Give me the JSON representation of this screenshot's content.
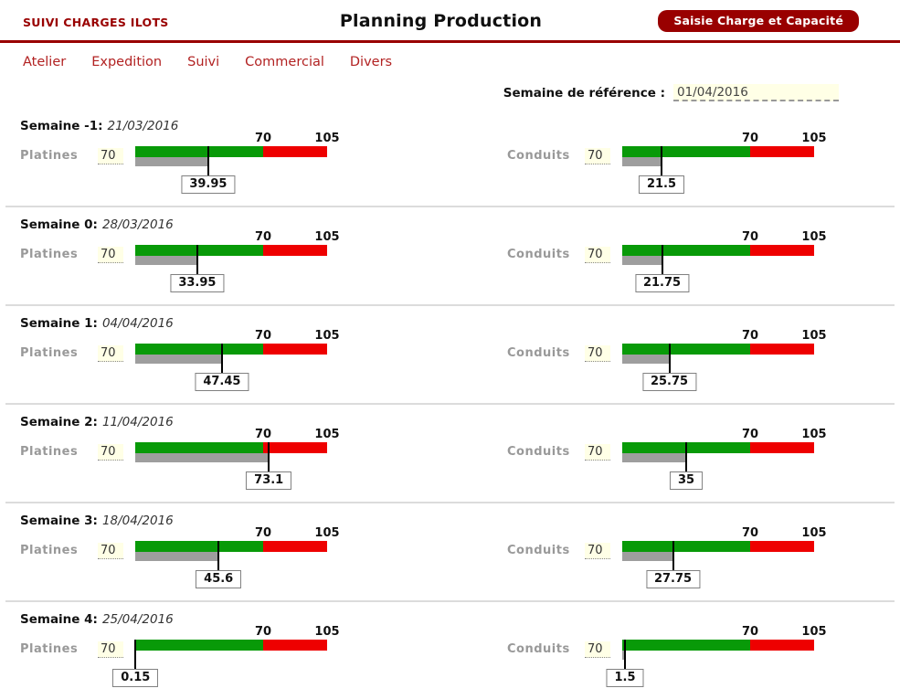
{
  "header": {
    "app_title": "SUIVI CHARGES ILOTS",
    "page_title": "Planning Production",
    "action_button_label": "Saisie Charge et Capacité"
  },
  "nav": {
    "items": [
      {
        "label": "Atelier"
      },
      {
        "label": "Expedition"
      },
      {
        "label": "Suivi"
      },
      {
        "label": "Commercial"
      },
      {
        "label": "Divers"
      }
    ]
  },
  "reference": {
    "label": "Semaine de référence :",
    "value": "01/04/2016"
  },
  "scale": {
    "warn_label": "70",
    "max_label": "105",
    "warn_value": 70,
    "max_value": 105
  },
  "colors": {
    "accent_red": "#990000",
    "nav_red": "#b22222",
    "capacity_green": "#089a08",
    "overload_red": "#ee0000",
    "charge_gray": "#9e9e9e",
    "input_yellow": "#ffffe6"
  },
  "weeks": [
    {
      "label": "Semaine -1:",
      "date": "21/03/2016",
      "gauges": [
        {
          "name": "Platines",
          "capacity": "70",
          "charge": "39.95",
          "charge_value": 39.95
        },
        {
          "name": "Conduits",
          "capacity": "70",
          "charge": "21.5",
          "charge_value": 21.5
        }
      ]
    },
    {
      "label": "Semaine 0:",
      "date": "28/03/2016",
      "gauges": [
        {
          "name": "Platines",
          "capacity": "70",
          "charge": "33.95",
          "charge_value": 33.95
        },
        {
          "name": "Conduits",
          "capacity": "70",
          "charge": "21.75",
          "charge_value": 21.75
        }
      ]
    },
    {
      "label": "Semaine 1:",
      "date": "04/04/2016",
      "gauges": [
        {
          "name": "Platines",
          "capacity": "70",
          "charge": "47.45",
          "charge_value": 47.45
        },
        {
          "name": "Conduits",
          "capacity": "70",
          "charge": "25.75",
          "charge_value": 25.75
        }
      ]
    },
    {
      "label": "Semaine 2:",
      "date": "11/04/2016",
      "gauges": [
        {
          "name": "Platines",
          "capacity": "70",
          "charge": "73.1",
          "charge_value": 73.1
        },
        {
          "name": "Conduits",
          "capacity": "70",
          "charge": "35",
          "charge_value": 35
        }
      ]
    },
    {
      "label": "Semaine 3:",
      "date": "18/04/2016",
      "gauges": [
        {
          "name": "Platines",
          "capacity": "70",
          "charge": "45.6",
          "charge_value": 45.6
        },
        {
          "name": "Conduits",
          "capacity": "70",
          "charge": "27.75",
          "charge_value": 27.75
        }
      ]
    },
    {
      "label": "Semaine 4:",
      "date": "25/04/2016",
      "gauges": [
        {
          "name": "Platines",
          "capacity": "70",
          "charge": "0.15",
          "charge_value": 0.15
        },
        {
          "name": "Conduits",
          "capacity": "70",
          "charge": "1.5",
          "charge_value": 1.5
        }
      ]
    }
  ]
}
